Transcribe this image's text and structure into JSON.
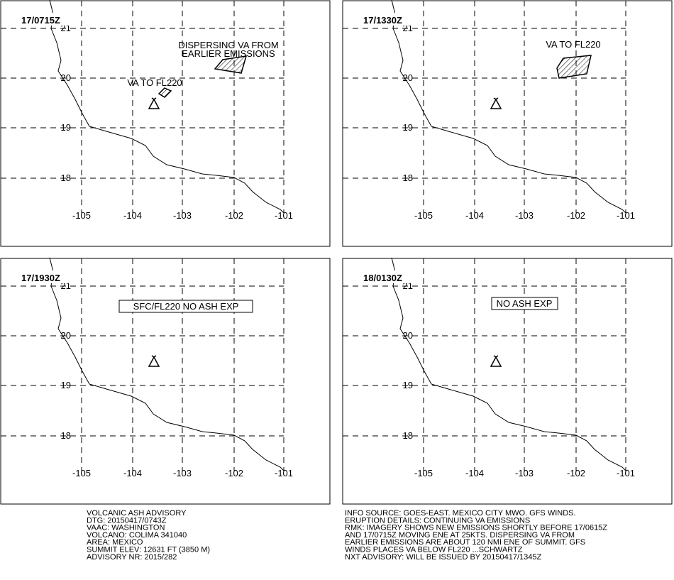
{
  "grid": {
    "lat_labels": [
      "21",
      "20",
      "19",
      "18"
    ],
    "lon_labels": [
      "-105",
      "-104",
      "-103",
      "-102",
      "-101"
    ]
  },
  "panels": [
    {
      "time": "17/0715Z",
      "annotations": [
        "DISPERSING VA FROM",
        "EARLIER EMISSIONS",
        "VA TO FL220"
      ]
    },
    {
      "time": "17/1330Z",
      "annotations": [
        "VA TO FL220"
      ]
    },
    {
      "time": "17/1930Z",
      "annotations": [
        "SFC/FL220 NO ASH EXP"
      ]
    },
    {
      "time": "18/0130Z",
      "annotations": [
        "NO ASH EXP"
      ]
    }
  ],
  "footer": {
    "left": [
      "VOLCANIC ASH ADVISORY",
      "DTG: 20150417/0743Z",
      "VAAC: WASHINGTON",
      "VOLCANO: COLIMA 341040",
      "AREA: MEXICO",
      "SUMMIT ELEV: 12631 FT (3850 M)",
      "ADVISORY NR: 2015/282"
    ],
    "right": [
      "INFO SOURCE: GOES-EAST. MEXICO CITY MWO. GFS WINDS.",
      "ERUPTION DETAILS: CONTINUING VA EMISSIONS",
      "RMK: IMAGERY SHOWS NEW EMISSIONS SHORTLY BEFORE 17/0615Z",
      "AND 17/0715Z MOVING ENE AT 25KTS. DISPERSING VA FROM",
      "EARLIER EMISSIONS ARE ABOUT 120 NMI ENE OF SUMMIT. GFS",
      "WINDS PLACES VA BELOW FL220 ...SCHWARTZ",
      "NXT ADVISORY: WILL BE ISSUED BY 20150417/1345Z"
    ]
  }
}
